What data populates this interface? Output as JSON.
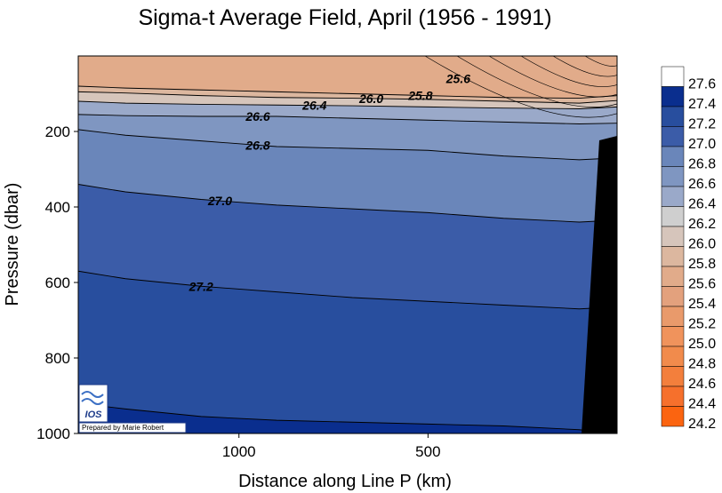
{
  "chart_data": {
    "type": "contour",
    "title": "Sigma-t Average Field,  April (1956 - 1991)",
    "xlabel": "Distance along Line P  (km)",
    "ylabel": "Pressure  (dbar)",
    "x_ticks": [
      "1000",
      "500"
    ],
    "y_ticks": [
      "200",
      "400",
      "600",
      "800",
      "1000"
    ],
    "x_tick_values": [
      1000,
      500
    ],
    "y_tick_values": [
      200,
      400,
      600,
      800,
      1000
    ],
    "xlim": [
      1425,
      0
    ],
    "ylim": [
      1000,
      0
    ],
    "x_axis_reversed": true,
    "y_axis_inverted": true,
    "colorbar_ticks": [
      "27.6",
      "27.4",
      "27.2",
      "27.0",
      "26.8",
      "26.6",
      "26.4",
      "26.2",
      "26.0",
      "25.8",
      "25.6",
      "25.4",
      "25.2",
      "25.0",
      "24.8",
      "24.6",
      "24.4",
      "24.2"
    ],
    "colorbar_colors": [
      "#ffffff",
      "#0a2e8e",
      "#284e9e",
      "#3b5ca8",
      "#6a86ba",
      "#7f96c1",
      "#9aa9c9",
      "#cfcfcf",
      "#d6c5bb",
      "#dcb79f",
      "#e1ab8a",
      "#e3a17d",
      "#e99a6b",
      "#f0935c",
      "#f18b4c",
      "#f37f3c",
      "#f6702c",
      "#fb6410"
    ],
    "contour_labels": [
      "25.6",
      "25.8",
      "26.0",
      "26.4",
      "26.6",
      "26.8",
      "27.0",
      "27.2"
    ],
    "contour_lines": [
      {
        "level": 25.8,
        "x": [
          1425,
          1300,
          1100,
          900,
          700,
          500,
          300,
          100,
          0
        ],
        "y": [
          80,
          85,
          90,
          95,
          100,
          105,
          110,
          112,
          105
        ]
      },
      {
        "level": 26.0,
        "x": [
          1425,
          1300,
          1100,
          900,
          700,
          500,
          300,
          100,
          0
        ],
        "y": [
          95,
          98,
          105,
          110,
          112,
          115,
          120,
          125,
          118
        ]
      },
      {
        "level": 26.4,
        "x": [
          1425,
          1300,
          1100,
          900,
          700,
          500,
          300,
          100,
          0
        ],
        "y": [
          120,
          125,
          128,
          130,
          132,
          135,
          138,
          140,
          135
        ]
      },
      {
        "level": 26.6,
        "x": [
          1425,
          1300,
          1100,
          900,
          700,
          500,
          300,
          100,
          0
        ],
        "y": [
          155,
          158,
          160,
          160,
          165,
          170,
          175,
          180,
          178
        ]
      },
      {
        "level": 26.8,
        "x": [
          1425,
          1300,
          1100,
          900,
          700,
          500,
          300,
          100,
          0
        ],
        "y": [
          195,
          210,
          225,
          240,
          245,
          250,
          265,
          275,
          270
        ]
      },
      {
        "level": 27.0,
        "x": [
          1425,
          1300,
          1100,
          900,
          700,
          500,
          300,
          100,
          0
        ],
        "y": [
          340,
          360,
          380,
          395,
          405,
          415,
          430,
          440,
          435
        ]
      },
      {
        "level": 27.2,
        "x": [
          1425,
          1300,
          1100,
          900,
          700,
          500,
          300,
          100,
          0
        ],
        "y": [
          570,
          590,
          610,
          625,
          640,
          650,
          660,
          670,
          665
        ]
      },
      {
        "level": 27.4,
        "x": [
          1425,
          1300,
          1100,
          900,
          700,
          500,
          300,
          100,
          0
        ],
        "y": [
          920,
          935,
          955,
          965,
          970,
          975,
          980,
          990,
          1000
        ]
      }
    ],
    "bottom_mask": "black",
    "credit": "Prepared by Marie Robert",
    "logo_text": "IOS"
  }
}
